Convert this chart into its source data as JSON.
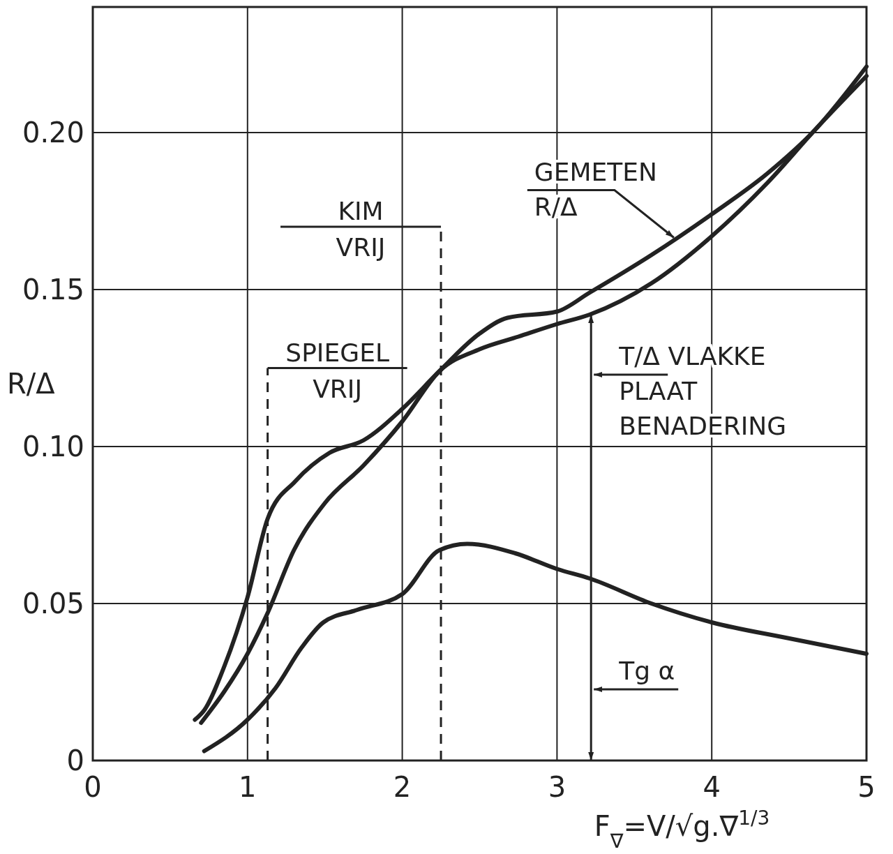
{
  "chart_data": {
    "type": "line",
    "xlabel": "F$_{∇}$=V/√g.∇$^{1/3}$",
    "ylabel": "R/Δ",
    "xlim": [
      0,
      5
    ],
    "ylim": [
      0,
      0.24
    ],
    "xticks": [
      0,
      1,
      2,
      3,
      4,
      5
    ],
    "yticks": [
      0,
      0.05,
      {
        "value": 0.1,
        "label": "0.10"
      },
      0.15,
      {
        "value": 0.2,
        "label": "0.20"
      }
    ],
    "grid": true,
    "line_style": "solid",
    "marker": "none",
    "series": [
      {
        "color": "#222222",
        "x": [
          0.66,
          0.72,
          0.85,
          1.0,
          1.13,
          1.31,
          1.53,
          1.75,
          2.0,
          2.24,
          2.5,
          2.68,
          3.0,
          3.21,
          3.61,
          4.0,
          4.36,
          4.67,
          5.0
        ],
        "values": [
          0.013,
          0.016,
          0.03,
          0.052,
          0.077,
          0.089,
          0.098,
          0.102,
          0.112,
          0.124,
          0.136,
          0.141,
          0.143,
          0.149,
          0.161,
          0.174,
          0.187,
          0.201,
          0.221
        ]
      },
      {
        "color": "#222222",
        "x": [
          0.7,
          0.85,
          1.0,
          1.13,
          1.3,
          1.5,
          1.75,
          2.0,
          2.24,
          2.5,
          2.75,
          3.0,
          3.21,
          3.61,
          4.0,
          4.36,
          4.67,
          5.0
        ],
        "values": [
          0.012,
          0.022,
          0.034,
          0.047,
          0.067,
          0.082,
          0.094,
          0.108,
          0.124,
          0.131,
          0.135,
          0.139,
          0.142,
          0.152,
          0.167,
          0.184,
          0.201,
          0.218
        ]
      },
      {
        "color": "#222222",
        "x": [
          0.72,
          1.0,
          1.18,
          1.35,
          1.49,
          1.71,
          2.0,
          2.24,
          2.42,
          2.73,
          3.0,
          3.21,
          3.61,
          4.0,
          4.49,
          5.0
        ],
        "values": [
          0.003,
          0.013,
          0.023,
          0.036,
          0.044,
          0.048,
          0.053,
          0.067,
          0.069,
          0.066,
          0.061,
          0.058,
          0.05,
          0.044,
          0.039,
          0.034
        ]
      }
    ],
    "ref_lines": [
      {
        "axis": "x",
        "value": 1.13,
        "label": "SPIEGEL\nVRIJ",
        "line_style": "dashed"
      },
      {
        "axis": "x",
        "value": 2.25,
        "label": "KIM\nVRIJ",
        "line_style": "dashed"
      }
    ],
    "annotations": [
      {
        "text": "GEMETEN\nR/Δ",
        "x": 3.8,
        "y": 0.167
      },
      {
        "text": "T/Δ VLAKKE\nPLAAT\nBENADERING",
        "x": 3.22,
        "y": 0.142
      },
      "Tg α"
    ]
  }
}
